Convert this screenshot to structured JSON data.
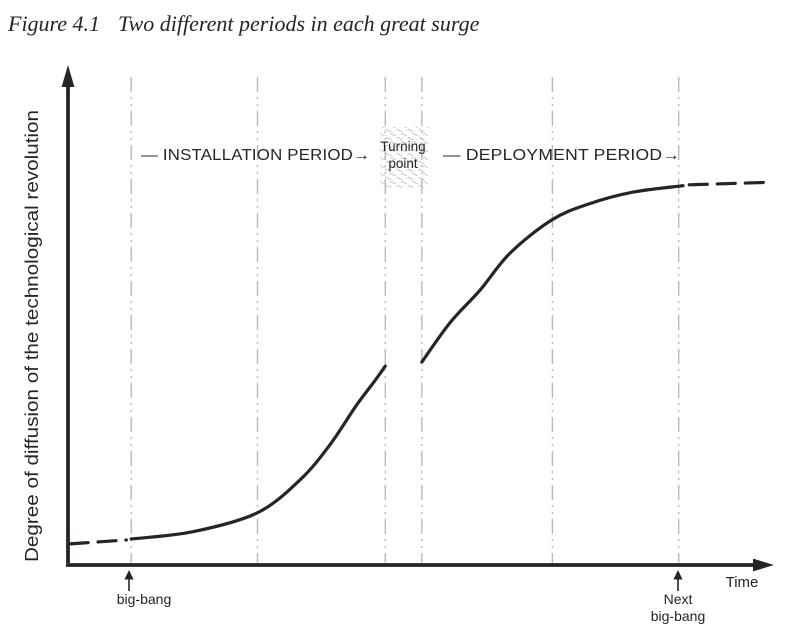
{
  "figure": {
    "label": "Figure 4.1",
    "title": "Two different periods in each great surge"
  },
  "axes": {
    "y_label": "Degree of diffusion of the technological revolution",
    "x_label": "Time"
  },
  "annotations": {
    "installation_label": "— INSTALLATION PERIOD→",
    "turning_point_line1": "Turning",
    "turning_point_line2": "point",
    "deployment_label": "— DEPLOYMENT PERIOD→",
    "big_bang_label": "big-bang",
    "next_big_bang_line1": "Next",
    "next_big_bang_line2": "big-bang"
  },
  "colors": {
    "ink": "#282426",
    "gridline": "#b4bbbf",
    "stipple": "#c3c9cc",
    "background": "#ffffff"
  },
  "chart_data": {
    "type": "line",
    "title": "Two different periods in each great surge",
    "xlabel": "Time",
    "ylabel": "Degree of diffusion of the technological revolution",
    "x_range": [
      0,
      100
    ],
    "y_range": [
      0,
      100
    ],
    "axis_numeric_ticks": "none (qualitative sketch)",
    "grid": "six vertical dash-dot event lines only",
    "gridlines_t": [
      9,
      27,
      45.2,
      50.4,
      69,
      87
    ],
    "events": [
      {
        "label": "big-bang",
        "t": 8.7
      },
      {
        "label": "Next big-bang",
        "t": 86.9
      }
    ],
    "phases": [
      {
        "label": "INSTALLATION PERIOD",
        "from_t": 9,
        "to_t": 45.2
      },
      {
        "label": "Turning point",
        "from_t": 45.2,
        "to_t": 50.4
      },
      {
        "label": "DEPLOYMENT PERIOD",
        "from_t": 50.4,
        "to_t": 87
      }
    ],
    "series": [
      {
        "name": "pre-big-bang diffusion",
        "style": "dashed",
        "points": [
          [
            0.3,
            4.3
          ],
          [
            8.3,
            5.1
          ]
        ]
      },
      {
        "name": "installation diffusion",
        "style": "solid",
        "points": [
          [
            9,
            5.3
          ],
          [
            17.8,
            6.8
          ],
          [
            26.9,
            10.6
          ],
          [
            33,
            17.3
          ],
          [
            37.3,
            24.5
          ],
          [
            41,
            32.4
          ],
          [
            43.7,
            37.6
          ],
          [
            45.2,
            40.6
          ]
        ]
      },
      {
        "name": "deployment diffusion",
        "style": "solid",
        "points": [
          [
            50.4,
            41.4
          ],
          [
            54.4,
            49.4
          ],
          [
            58.7,
            56.1
          ],
          [
            63,
            63.7
          ],
          [
            68.9,
            70.4
          ],
          [
            74,
            73.6
          ],
          [
            80.5,
            76.1
          ],
          [
            87.6,
            77.4
          ]
        ]
      },
      {
        "name": "maturity diffusion",
        "style": "dashed",
        "points": [
          [
            88.5,
            77.6
          ],
          [
            100,
            78.1
          ]
        ]
      }
    ]
  }
}
